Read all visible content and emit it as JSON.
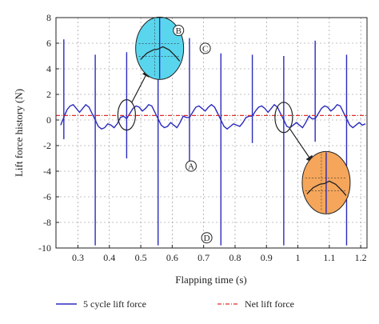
{
  "chart_data": {
    "type": "line",
    "title": "",
    "xlabel": "Flapping time (s)",
    "ylabel": "Lift force history (N)",
    "xlim": [
      0.23,
      1.22
    ],
    "ylim": [
      -10,
      8
    ],
    "x_ticks": [
      0.3,
      0.4,
      0.5,
      0.6,
      0.7,
      0.8,
      0.9,
      1,
      1.1,
      1.2
    ],
    "x_tick_labels": [
      "0.3",
      "0.4",
      "0.5",
      "0.6",
      "0.7",
      "0.8",
      "0.9",
      "1",
      "1.1",
      "1.2"
    ],
    "y_ticks": [
      -10,
      -8,
      -6,
      -4,
      -2,
      0,
      2,
      4,
      6,
      8
    ],
    "y_tick_labels": [
      "-10",
      "-8",
      "-6",
      "-4",
      "-2",
      "0",
      "2",
      "4",
      "6",
      "8"
    ],
    "grid": true,
    "legend_position": "bottom",
    "series": [
      {
        "name": "5 cycle lift force",
        "color": "#2b2bbf",
        "style": "solid",
        "x": [
          0.245,
          0.255,
          0.265,
          0.275,
          0.285,
          0.295,
          0.305,
          0.315,
          0.325,
          0.335,
          0.345,
          0.355,
          0.365,
          0.375,
          0.385,
          0.395,
          0.405,
          0.415,
          0.425,
          0.435,
          0.445,
          0.455,
          0.465,
          0.475,
          0.485,
          0.495,
          0.505,
          0.515,
          0.525,
          0.535,
          0.545,
          0.555,
          0.565,
          0.575,
          0.585,
          0.595,
          0.605,
          0.615,
          0.625,
          0.635,
          0.645,
          0.655,
          0.665,
          0.675,
          0.685,
          0.695,
          0.705,
          0.715,
          0.725,
          0.735,
          0.745,
          0.755,
          0.765,
          0.775,
          0.785,
          0.795,
          0.805,
          0.815,
          0.825,
          0.835,
          0.845,
          0.855,
          0.865,
          0.875,
          0.885,
          0.895,
          0.905,
          0.915,
          0.925,
          0.935,
          0.945,
          0.955,
          0.965,
          0.975,
          0.985,
          0.995,
          1.005,
          1.015,
          1.025,
          1.035,
          1.045,
          1.055,
          1.065,
          1.075,
          1.085,
          1.095,
          1.105,
          1.115,
          1.125,
          1.135,
          1.145,
          1.155,
          1.165,
          1.175,
          1.185,
          1.195,
          1.205,
          1.215
        ],
        "y": [
          -0.4,
          0.2,
          0.8,
          1.1,
          1.2,
          0.9,
          0.6,
          0.9,
          1.2,
          1.0,
          0.5,
          0.0,
          -0.5,
          -0.7,
          -0.6,
          -0.3,
          -0.4,
          -0.6,
          -0.3,
          0.2,
          0.3,
          0.1,
          0.5,
          0.9,
          1.1,
          1.0,
          0.7,
          0.9,
          1.2,
          1.1,
          0.6,
          0.1,
          -0.4,
          -0.6,
          -0.5,
          -0.2,
          -0.4,
          -0.6,
          -0.2,
          0.3,
          0.2,
          0.2,
          0.6,
          1.0,
          1.1,
          0.9,
          0.7,
          1.0,
          1.2,
          1.0,
          0.5,
          0.0,
          -0.5,
          -0.7,
          -0.5,
          -0.3,
          -0.4,
          -0.5,
          -0.2,
          0.2,
          0.3,
          0.3,
          0.7,
          1.0,
          1.1,
          0.9,
          0.6,
          0.9,
          1.2,
          1.0,
          0.5,
          0.0,
          -0.5,
          -0.6,
          -0.4,
          -0.2,
          -0.4,
          -0.6,
          -0.2,
          0.3,
          0.1,
          0.1,
          0.5,
          0.9,
          1.1,
          1.0,
          0.7,
          0.9,
          1.2,
          1.1,
          0.6,
          0.1,
          -0.4,
          -0.6,
          -0.4,
          -0.2,
          -0.4,
          -0.3
        ]
      },
      {
        "name": "Net lift force",
        "color": "#d9302b",
        "style": "dash-dot",
        "x": [
          0.23,
          1.22
        ],
        "y": [
          0.35,
          0.35
        ]
      }
    ],
    "spikes": [
      {
        "x": 0.255,
        "y_top": 6.3,
        "y_bottom": -1.5
      },
      {
        "x": 0.355,
        "y_top": 5.1,
        "y_bottom": -9.8
      },
      {
        "x": 0.455,
        "y_top": 5.3,
        "y_bottom": -3.0
      },
      {
        "x": 0.555,
        "y_top": 6.2,
        "y_bottom": -9.8
      },
      {
        "x": 0.655,
        "y_top": 6.4,
        "y_bottom": -3.2
      },
      {
        "x": 0.755,
        "y_top": 5.2,
        "y_bottom": -9.8
      },
      {
        "x": 0.855,
        "y_top": 5.1,
        "y_bottom": -1.8
      },
      {
        "x": 0.955,
        "y_top": 5.0,
        "y_bottom": -9.8
      },
      {
        "x": 1.055,
        "y_top": 6.2,
        "y_bottom": -1.7
      },
      {
        "x": 1.155,
        "y_top": 5.1,
        "y_bottom": -9.8
      }
    ],
    "annotations": [
      {
        "label": "A",
        "x": 0.66,
        "y": -3.6
      },
      {
        "label": "B",
        "x": 0.62,
        "y": 7.0
      },
      {
        "label": "C",
        "x": 0.705,
        "y": 5.6
      },
      {
        "label": "D",
        "x": 0.71,
        "y": -9.2
      }
    ],
    "zoom_insets": [
      {
        "name": "upper-inset",
        "fill": "#59d6ee",
        "source": {
          "x": 0.455,
          "y": 0.4
        },
        "target": {
          "x": 0.56,
          "y": 5.6
        }
      },
      {
        "name": "lower-inset",
        "fill": "#f5a65b",
        "source": {
          "x": 0.955,
          "y": 0.2
        },
        "target": {
          "x": 1.09,
          "y": -4.9
        }
      }
    ]
  }
}
